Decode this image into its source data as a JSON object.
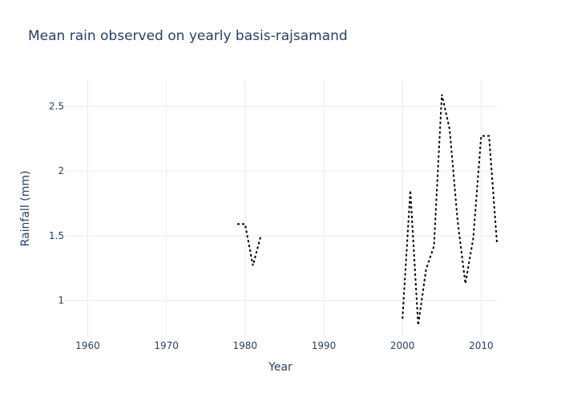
{
  "chart_data": {
    "type": "line",
    "title": "Mean rain observed on yearly basis-rajsamand",
    "xlabel": "Year",
    "ylabel": "Rainfall (mm)",
    "xlim": [
      1957,
      2012
    ],
    "ylim": [
      0.72,
      2.7
    ],
    "x_ticks": [
      1960,
      1970,
      1980,
      1990,
      2000,
      2010
    ],
    "x_tick_labels": [
      "1960",
      "1970",
      "1980",
      "1990",
      "2000",
      "2010"
    ],
    "y_ticks": [
      1,
      1.5,
      2,
      2.5
    ],
    "y_tick_labels": [
      "1",
      "1.5",
      "2",
      "2.5"
    ],
    "grid": true,
    "legend": "none",
    "line_style": "dotted",
    "line_color": "#000000",
    "segments": [
      {
        "x": [
          1979,
          1980,
          1981,
          1982
        ],
        "y": [
          1.59,
          1.59,
          1.27,
          1.5
        ]
      },
      {
        "x": [
          2000,
          2001,
          2002,
          2003,
          2004,
          2005,
          2006,
          2007,
          2008,
          2009,
          2010,
          2011,
          2012
        ],
        "y": [
          0.86,
          1.85,
          0.81,
          1.24,
          1.42,
          2.59,
          2.32,
          1.62,
          1.13,
          1.48,
          2.27,
          2.27,
          1.45
        ]
      }
    ]
  }
}
